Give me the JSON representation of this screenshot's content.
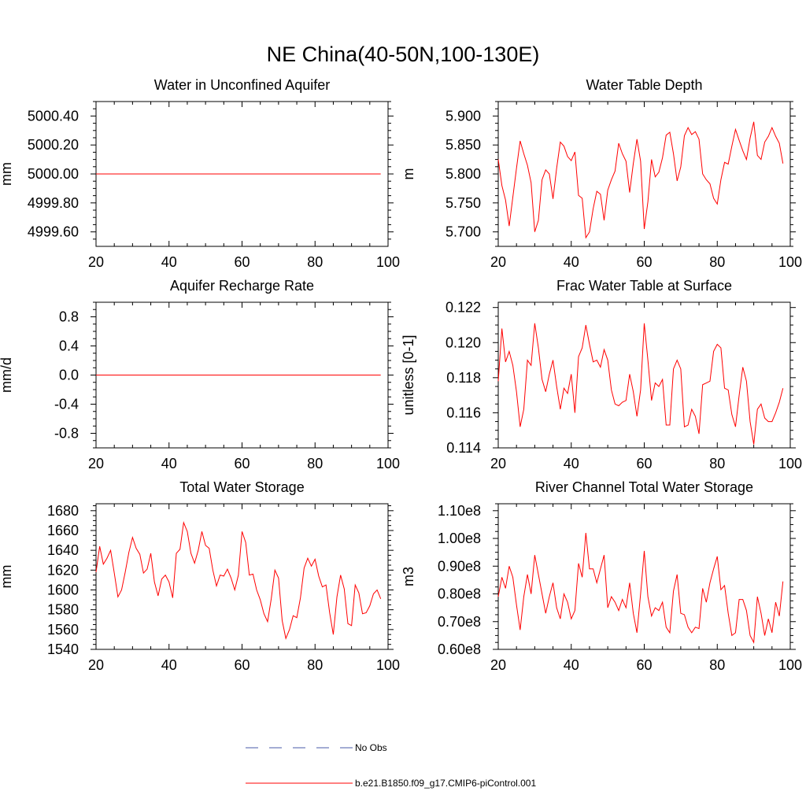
{
  "title": "NE China(40-50N,100-130E)",
  "colors": {
    "series": "#ff0000",
    "obs": "#4a5aa8",
    "axis": "#000000"
  },
  "legend": {
    "obs_label": "No Obs",
    "model_label": "b.e21.B1850.f09_g17.CMIP6-piControl.001"
  },
  "chart_data": [
    {
      "type": "line",
      "title": "Water in Unconfined Aquifer",
      "ylabel": "mm",
      "xlim": [
        20,
        100
      ],
      "ylim": [
        4999.5,
        5000.5
      ],
      "xticks": [
        20,
        40,
        60,
        80,
        100
      ],
      "xtick_labels": [
        "20",
        "40",
        "60",
        "80",
        "100"
      ],
      "yticks": [
        4999.6,
        4999.8,
        5000.0,
        5000.2,
        5000.4
      ],
      "ytick_labels": [
        "4999.60",
        "4999.80",
        "5000.00",
        "5000.20",
        "5000.40"
      ],
      "x_start": 20,
      "x_step": 1,
      "values": [
        5000,
        5000
      ]
    },
    {
      "type": "line",
      "title": "Water Table Depth",
      "ylabel": "m",
      "xlim": [
        20,
        100
      ],
      "ylim": [
        5.675,
        5.925
      ],
      "xticks": [
        20,
        40,
        60,
        80,
        100
      ],
      "xtick_labels": [
        "20",
        "40",
        "60",
        "80",
        "100"
      ],
      "yticks": [
        5.7,
        5.75,
        5.8,
        5.85,
        5.9
      ],
      "ytick_labels": [
        "5.700",
        "5.750",
        "5.800",
        "5.850",
        "5.900"
      ],
      "x_start": 20,
      "x_step": 1,
      "values": [
        5.825,
        5.78,
        5.755,
        5.71,
        5.76,
        5.81,
        5.857,
        5.835,
        5.815,
        5.785,
        5.7,
        5.72,
        5.79,
        5.807,
        5.8,
        5.757,
        5.81,
        5.855,
        5.848,
        5.83,
        5.823,
        5.838,
        5.763,
        5.758,
        5.69,
        5.7,
        5.74,
        5.77,
        5.765,
        5.72,
        5.772,
        5.79,
        5.805,
        5.853,
        5.835,
        5.822,
        5.768,
        5.818,
        5.86,
        5.822,
        5.705,
        5.752,
        5.825,
        5.795,
        5.803,
        5.828,
        5.867,
        5.872,
        5.835,
        5.788,
        5.812,
        5.866,
        5.88,
        5.868,
        5.873,
        5.86,
        5.8,
        5.79,
        5.783,
        5.758,
        5.748,
        5.79,
        5.82,
        5.817,
        5.848,
        5.877,
        5.858,
        5.84,
        5.825,
        5.862,
        5.89,
        5.832,
        5.825,
        5.855,
        5.865,
        5.88,
        5.865,
        5.853,
        5.818
      ]
    },
    {
      "type": "line",
      "title": "Aquifer Recharge Rate",
      "ylabel": "mm/d",
      "xlim": [
        20,
        100
      ],
      "ylim": [
        -1,
        1
      ],
      "xticks": [
        20,
        40,
        60,
        80,
        100
      ],
      "xtick_labels": [
        "20",
        "40",
        "60",
        "80",
        "100"
      ],
      "yticks": [
        -0.8,
        -0.4,
        0.0,
        0.4,
        0.8
      ],
      "ytick_labels": [
        "-0.8",
        "-0.4",
        "0.0",
        "0.4",
        "0.8"
      ],
      "x_start": 20,
      "x_step": 1,
      "values": [
        0,
        0
      ]
    },
    {
      "type": "line",
      "title": "Frac Water Table at Surface",
      "ylabel": "unitless [0-1]",
      "xlim": [
        20,
        100
      ],
      "ylim": [
        0.114,
        0.1223
      ],
      "xticks": [
        20,
        40,
        60,
        80,
        100
      ],
      "xtick_labels": [
        "20",
        "40",
        "60",
        "80",
        "100"
      ],
      "yticks": [
        0.114,
        0.116,
        0.118,
        0.12,
        0.122
      ],
      "ytick_labels": [
        "0.114",
        "0.116",
        "0.118",
        "0.120",
        "0.122"
      ],
      "x_start": 20,
      "x_step": 1,
      "values": [
        0.1178,
        0.1208,
        0.1189,
        0.1195,
        0.1187,
        0.1172,
        0.1152,
        0.1162,
        0.119,
        0.1187,
        0.1211,
        0.1197,
        0.1179,
        0.1172,
        0.1182,
        0.119,
        0.1175,
        0.1162,
        0.1174,
        0.1171,
        0.1182,
        0.116,
        0.1192,
        0.1197,
        0.121,
        0.1199,
        0.1189,
        0.119,
        0.1186,
        0.1196,
        0.119,
        0.1173,
        0.1165,
        0.1164,
        0.1166,
        0.1167,
        0.1182,
        0.1172,
        0.1158,
        0.1173,
        0.1211,
        0.119,
        0.1167,
        0.1177,
        0.1175,
        0.1179,
        0.1153,
        0.1153,
        0.1185,
        0.119,
        0.1185,
        0.1152,
        0.1153,
        0.1162,
        0.1158,
        0.1148,
        0.1176,
        0.1177,
        0.1178,
        0.1195,
        0.1199,
        0.1197,
        0.1174,
        0.1173,
        0.1159,
        0.1152,
        0.117,
        0.1186,
        0.1178,
        0.1155,
        0.1142,
        0.1162,
        0.1165,
        0.1157,
        0.1155,
        0.1155,
        0.116,
        0.1166,
        0.1174
      ]
    },
    {
      "type": "line",
      "title": "Total Water Storage",
      "ylabel": "mm",
      "xlim": [
        20,
        100
      ],
      "ylim": [
        1540,
        1687
      ],
      "xticks": [
        20,
        40,
        60,
        80,
        100
      ],
      "xtick_labels": [
        "20",
        "40",
        "60",
        "80",
        "100"
      ],
      "yticks": [
        1540,
        1560,
        1580,
        1600,
        1620,
        1640,
        1660,
        1680
      ],
      "ytick_labels": [
        "1540",
        "1560",
        "1580",
        "1600",
        "1620",
        "1640",
        "1660",
        "1680"
      ],
      "x_start": 20,
      "x_step": 1,
      "values": [
        1618,
        1644,
        1626,
        1632,
        1640,
        1617,
        1593,
        1600,
        1618,
        1638,
        1653,
        1642,
        1636,
        1617,
        1621,
        1637,
        1608,
        1594,
        1611,
        1615,
        1608,
        1592,
        1637,
        1641,
        1668,
        1659,
        1637,
        1627,
        1640,
        1659,
        1645,
        1642,
        1620,
        1604,
        1615,
        1614,
        1621,
        1612,
        1600,
        1615,
        1659,
        1648,
        1615,
        1616,
        1600,
        1590,
        1576,
        1568,
        1591,
        1620,
        1612,
        1569,
        1551,
        1560,
        1574,
        1572,
        1592,
        1622,
        1632,
        1624,
        1631,
        1614,
        1603,
        1605,
        1577,
        1555,
        1593,
        1615,
        1601,
        1566,
        1564,
        1605,
        1597,
        1576,
        1577,
        1584,
        1596,
        1600,
        1591
      ]
    },
    {
      "type": "line",
      "title": "River Channel Total Water Storage",
      "ylabel": "m3",
      "xlim": [
        20,
        100
      ],
      "ylim": [
        60000000,
        112500000
      ],
      "xticks": [
        20,
        40,
        60,
        80,
        100
      ],
      "xtick_labels": [
        "20",
        "40",
        "60",
        "80",
        "100"
      ],
      "yticks": [
        60000000,
        70000000,
        80000000,
        90000000,
        100000000,
        110000000
      ],
      "ytick_labels": [
        "0.60e8",
        "0.70e8",
        "0.80e8",
        "0.90e8",
        "1.00e8",
        "1.10e8"
      ],
      "x_start": 20,
      "x_step": 1,
      "values": [
        79000000,
        86000000,
        82000000,
        90000000,
        86000000,
        76000000,
        67000000,
        79000000,
        87000000,
        80000000,
        94000000,
        87000000,
        80000000,
        73000000,
        79000000,
        84000000,
        75000000,
        71000000,
        80000000,
        77000000,
        71000000,
        74000000,
        91000000,
        86000000,
        102000000,
        89000000,
        89000000,
        84000000,
        89000000,
        94000000,
        75000000,
        79000000,
        77000000,
        74000000,
        78000000,
        75000000,
        84000000,
        73000000,
        66000000,
        80000000,
        95500000,
        79000000,
        72000000,
        75000000,
        74000000,
        77000000,
        68000000,
        66000000,
        81000000,
        87000000,
        73000000,
        72500000,
        68000000,
        66000000,
        68000000,
        67500000,
        82000000,
        77000000,
        84000000,
        89000000,
        93500000,
        81500000,
        83000000,
        73000000,
        65000000,
        66000000,
        78000000,
        78000000,
        74000000,
        65000000,
        62500000,
        79000000,
        73000000,
        65000000,
        71000000,
        66000000,
        77000000,
        72000000,
        84500000
      ]
    }
  ]
}
